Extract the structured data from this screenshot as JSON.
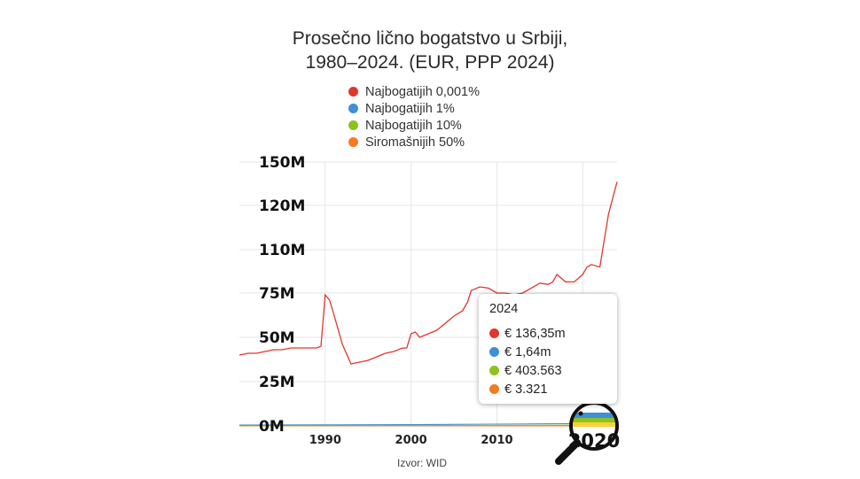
{
  "chart_data": {
    "type": "line",
    "title": "Prosečno lično bogatstvo u Srbiji, 1980–2024. (EUR, PPP 2024)",
    "title_lines": [
      "Prosečno lično bogatstvo u Srbiji,",
      "1980–2024. (EUR, PPP 2024)"
    ],
    "source": "Izvor: WID",
    "y_ticks": [
      "0M",
      "25M",
      "50M",
      "75M",
      "110M",
      "120M",
      "150M"
    ],
    "x_ticks": [
      "1990",
      "2000",
      "2010",
      "2020"
    ],
    "x_range": [
      1980,
      2024
    ],
    "legend_position": "top",
    "grid": true,
    "series": [
      {
        "name": "Najbogatijih 0,001%",
        "color": "#e0362c",
        "x": [
          1980,
          1981,
          1982,
          1983,
          1984,
          1985,
          1986,
          1987,
          1988,
          1989,
          1989.5,
          1990,
          1990.5,
          1991,
          1992,
          1993,
          1994,
          1995,
          1996,
          1997,
          1998,
          1999,
          1999.5,
          2000,
          2000.5,
          2001,
          2002,
          2003,
          2004,
          2005,
          2006,
          2006.6,
          2007,
          2008,
          2009,
          2010,
          2011,
          2012,
          2013,
          2014,
          2015,
          2016,
          2016.5,
          2017,
          2018,
          2019,
          2020,
          2020.5,
          2021,
          2022,
          2023,
          2024
        ],
        "y": [
          40,
          41,
          41,
          42,
          43,
          43,
          44,
          44,
          44,
          44,
          45,
          74,
          71,
          63,
          46,
          35,
          36,
          37,
          39,
          41,
          42,
          44,
          44,
          52,
          53,
          50,
          52,
          54,
          58,
          62,
          65,
          70,
          77,
          80,
          79,
          75,
          75,
          74,
          75,
          79,
          83,
          82,
          84,
          90,
          84,
          84,
          90,
          96,
          98,
          96,
          118,
          136.35
        ]
      },
      {
        "name": "Najbogatijih 1%",
        "color": "#3d8fd6",
        "x": [
          1980,
          1990,
          2000,
          2010,
          2020,
          2024
        ],
        "y": [
          0.5,
          0.6,
          0.7,
          1.0,
          1.3,
          1.64
        ]
      },
      {
        "name": "Najbogatijih 10%",
        "color": "#8dc21f",
        "x": [
          1980,
          1990,
          2000,
          2010,
          2020,
          2024
        ],
        "y": [
          0.15,
          0.18,
          0.2,
          0.3,
          0.35,
          0.403563
        ]
      },
      {
        "name": "Siromašnijih 50%",
        "color": "#f47b20",
        "x": [
          1980,
          1990,
          2000,
          2010,
          2020,
          2024
        ],
        "y": [
          0.002,
          0.002,
          0.002,
          0.003,
          0.003,
          0.003321
        ]
      }
    ]
  },
  "tooltip": {
    "year": "2024",
    "items": [
      {
        "label": "€ 136,35m",
        "color": "#e0362c"
      },
      {
        "label": "€ 1,64m",
        "color": "#3d8fd6"
      },
      {
        "label": "€ 403.563",
        "color": "#8dc21f"
      },
      {
        "label": "€ 3.321",
        "color": "#f47b20"
      }
    ]
  },
  "zoom": {
    "icon": "magnifier-icon",
    "label": "2020"
  }
}
